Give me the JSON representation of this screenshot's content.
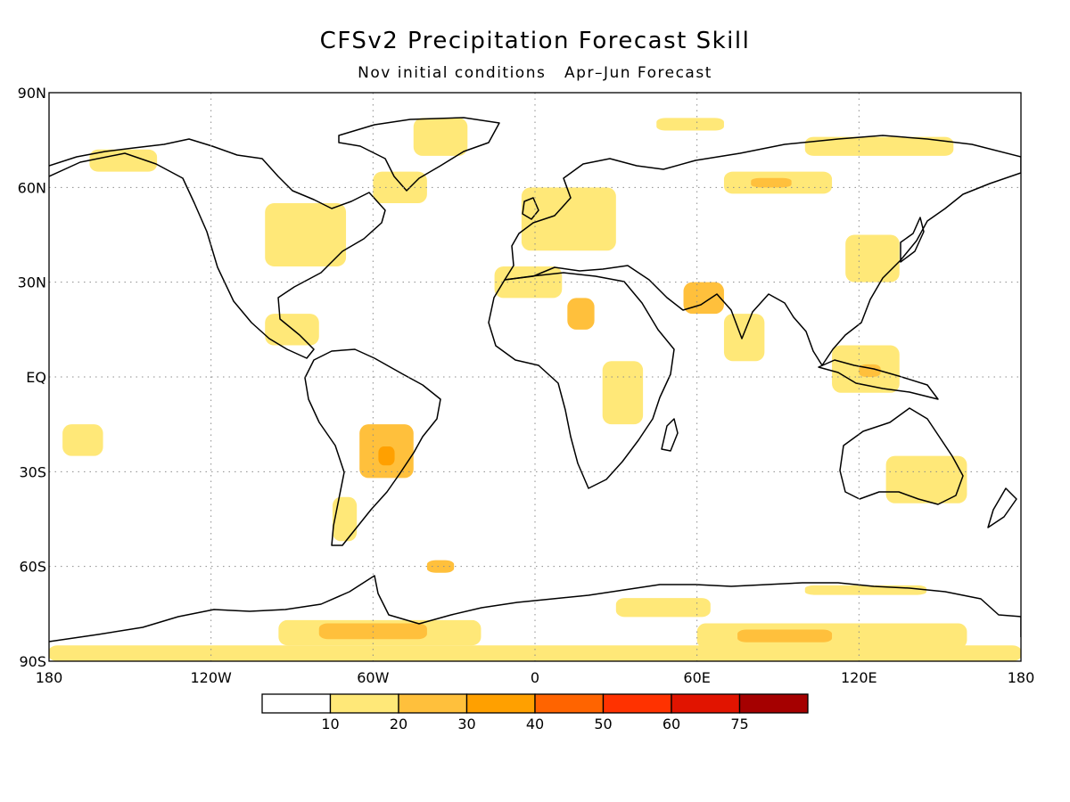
{
  "figure": {
    "title": "CFSv2 Precipitation Forecast Skill",
    "subtitle": "Nov initial conditions   Apr–Jun Forecast"
  },
  "map_data": {
    "type": "filled-contour-map",
    "projection": "equirectangular",
    "extent": {
      "lon": [
        -180,
        180
      ],
      "lat": [
        -90,
        90
      ]
    },
    "grid": true,
    "lat_ticks": [
      {
        "lat": 90,
        "label": "90N"
      },
      {
        "lat": 60,
        "label": "60N"
      },
      {
        "lat": 30,
        "label": "30N"
      },
      {
        "lat": 0,
        "label": "EQ"
      },
      {
        "lat": -30,
        "label": "30S"
      },
      {
        "lat": -60,
        "label": "60S"
      },
      {
        "lat": -90,
        "label": "90S"
      }
    ],
    "lon_ticks": [
      {
        "lon": -180,
        "label": "180"
      },
      {
        "lon": -120,
        "label": "120W"
      },
      {
        "lon": -60,
        "label": "60W"
      },
      {
        "lon": 0,
        "label": "0"
      },
      {
        "lon": 60,
        "label": "60E"
      },
      {
        "lon": 120,
        "label": "120E"
      },
      {
        "lon": 180,
        "label": "180"
      }
    ],
    "legend": {
      "placement": "bottom",
      "bins": [
        {
          "color": "#ffffff"
        },
        {
          "color": "#ffe878"
        },
        {
          "color": "#ffc03c"
        },
        {
          "color": "#ffa000"
        },
        {
          "color": "#ff6400"
        },
        {
          "color": "#ff3200"
        },
        {
          "color": "#e11400"
        },
        {
          "color": "#a50000"
        }
      ],
      "labels": [
        "10",
        "20",
        "30",
        "40",
        "50",
        "60",
        "75"
      ]
    },
    "regions": [
      {
        "name": "antarctica-band",
        "lon": [
          -180,
          180
        ],
        "lat": [
          -90,
          -85
        ],
        "bin": 1
      },
      {
        "name": "antarctica-pacific",
        "lon": [
          -95,
          -20
        ],
        "lat": [
          -85,
          -77
        ],
        "bin": 1
      },
      {
        "name": "antarctica-pacific-core",
        "lon": [
          -80,
          -40
        ],
        "lat": [
          -83,
          -78
        ],
        "bin": 2
      },
      {
        "name": "antarctica-east",
        "lon": [
          60,
          160
        ],
        "lat": [
          -86,
          -78
        ],
        "bin": 1
      },
      {
        "name": "antarctica-east-core",
        "lon": [
          75,
          110
        ],
        "lat": [
          -84,
          -80
        ],
        "bin": 2
      },
      {
        "name": "antarctica-coast-a",
        "lon": [
          30,
          65
        ],
        "lat": [
          -76,
          -70
        ],
        "bin": 1
      },
      {
        "name": "antarctica-coast-b",
        "lon": [
          100,
          145
        ],
        "lat": [
          -69,
          -66
        ],
        "bin": 1
      },
      {
        "name": "south-america-core",
        "lon": [
          -65,
          -45
        ],
        "lat": [
          -32,
          -15
        ],
        "bin": 2
      },
      {
        "name": "south-america-center",
        "lon": [
          -58,
          -52
        ],
        "lat": [
          -28,
          -22
        ],
        "bin": 3
      },
      {
        "name": "south-atlantic-blob",
        "lon": [
          -40,
          -30
        ],
        "lat": [
          -62,
          -58
        ],
        "bin": 2
      },
      {
        "name": "patagonia",
        "lon": [
          -75,
          -66
        ],
        "lat": [
          -52,
          -38
        ],
        "bin": 1
      },
      {
        "name": "sahara",
        "lon": [
          12,
          22
        ],
        "lat": [
          15,
          25
        ],
        "bin": 2
      },
      {
        "name": "north-africa",
        "lon": [
          -15,
          10
        ],
        "lat": [
          25,
          35
        ],
        "bin": 1
      },
      {
        "name": "arabia",
        "lon": [
          55,
          70
        ],
        "lat": [
          20,
          30
        ],
        "bin": 2
      },
      {
        "name": "siberia",
        "lon": [
          70,
          110
        ],
        "lat": [
          58,
          65
        ],
        "bin": 1
      },
      {
        "name": "siberia-core",
        "lon": [
          80,
          95
        ],
        "lat": [
          60,
          63
        ],
        "bin": 2
      },
      {
        "name": "east-asia",
        "lon": [
          115,
          135
        ],
        "lat": [
          30,
          45
        ],
        "bin": 1
      },
      {
        "name": "arctic-russia",
        "lon": [
          100,
          155
        ],
        "lat": [
          70,
          76
        ],
        "bin": 1
      },
      {
        "name": "arctic-svalbard",
        "lon": [
          45,
          70
        ],
        "lat": [
          78,
          82
        ],
        "bin": 1
      },
      {
        "name": "north-atlantic",
        "lon": [
          -60,
          -40
        ],
        "lat": [
          55,
          65
        ],
        "bin": 1
      },
      {
        "name": "north-america-east",
        "lon": [
          -100,
          -70
        ],
        "lat": [
          35,
          55
        ],
        "bin": 1
      },
      {
        "name": "alaska",
        "lon": [
          -165,
          -140
        ],
        "lat": [
          65,
          72
        ],
        "bin": 1
      },
      {
        "name": "indonesia",
        "lon": [
          110,
          135
        ],
        "lat": [
          -5,
          10
        ],
        "bin": 1
      },
      {
        "name": "maritime-core",
        "lon": [
          120,
          128
        ],
        "lat": [
          0,
          4
        ],
        "bin": 2
      },
      {
        "name": "australia-east",
        "lon": [
          130,
          160
        ],
        "lat": [
          -40,
          -25
        ],
        "bin": 1
      },
      {
        "name": "pacific-east",
        "lon": [
          -175,
          -160
        ],
        "lat": [
          -25,
          -15
        ],
        "bin": 1
      },
      {
        "name": "central-america",
        "lon": [
          -100,
          -80
        ],
        "lat": [
          10,
          20
        ],
        "bin": 1
      },
      {
        "name": "europe",
        "lon": [
          -5,
          30
        ],
        "lat": [
          40,
          60
        ],
        "bin": 1
      },
      {
        "name": "africa-east",
        "lon": [
          25,
          40
        ],
        "lat": [
          -15,
          5
        ],
        "bin": 1
      },
      {
        "name": "india",
        "lon": [
          70,
          85
        ],
        "lat": [
          5,
          20
        ],
        "bin": 1
      },
      {
        "name": "greenland",
        "lon": [
          -45,
          -25
        ],
        "lat": [
          70,
          82
        ],
        "bin": 1
      }
    ]
  }
}
